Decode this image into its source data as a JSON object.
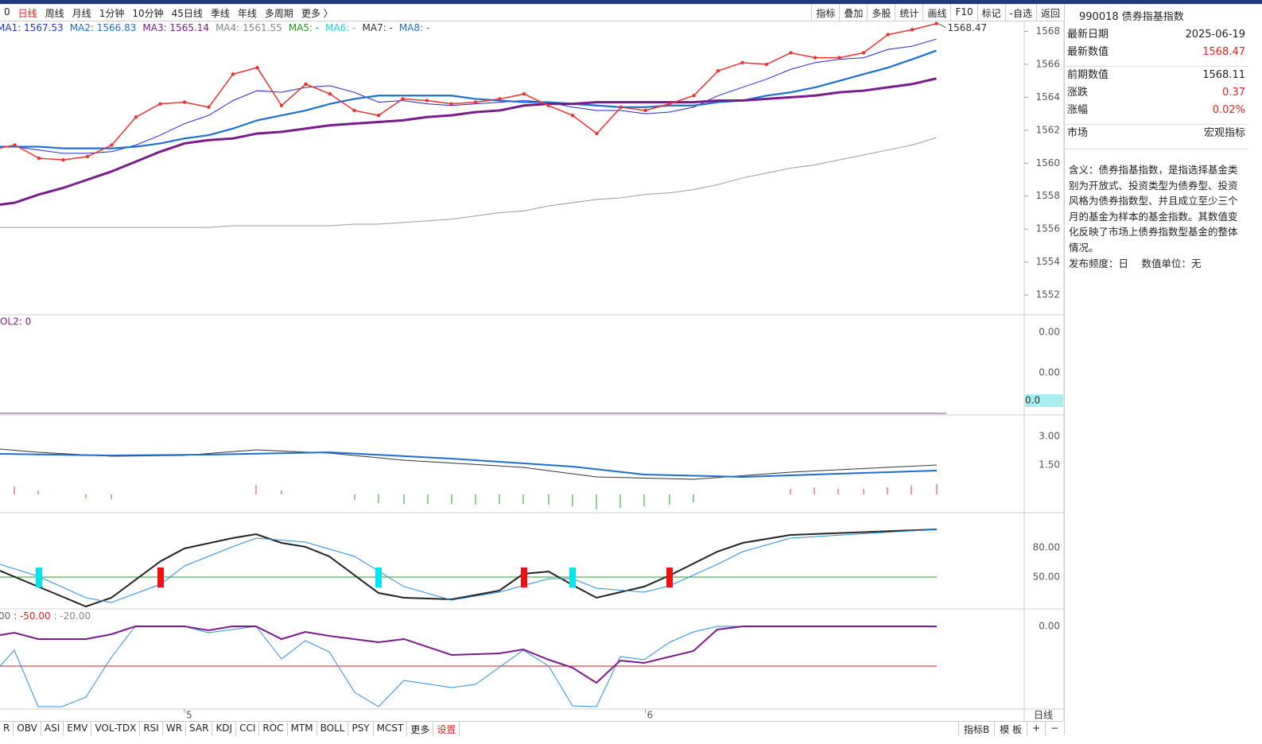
{
  "toolbar": {
    "periods": [
      "0",
      "日线",
      "周线",
      "月线",
      "1分钟",
      "10分钟",
      "45日线",
      "季线",
      "年线",
      "多周期",
      "更多 〉"
    ],
    "tools": [
      "指标",
      "叠加",
      "多股",
      "统计",
      "画线",
      "F10",
      "标记",
      "-自选",
      "返回"
    ]
  },
  "legend": [
    "MA1: 1567.53",
    "MA2: 1566.83",
    "MA3: 1565.14",
    "MA4: 1561.55",
    "MA5: -",
    "MA6: -",
    "MA7: -",
    "MA8: -"
  ],
  "chart_data": {
    "type": "line",
    "categories": [
      null,
      null,
      null,
      null,
      null,
      null,
      null,
      null,
      "5",
      null,
      null,
      null,
      null,
      null,
      null,
      null,
      null,
      null,
      null,
      null,
      null,
      null,
      null,
      null,
      null,
      null,
      null,
      "6",
      null,
      null,
      null,
      null,
      null,
      null,
      null,
      null,
      null,
      null,
      null,
      null
    ],
    "ylim": [
      1550.8,
      1568.6
    ],
    "yticks": [
      1552,
      1554,
      1556,
      1558,
      1560,
      1562,
      1564,
      1566,
      1568
    ],
    "last_label": "1568.47",
    "series": [
      {
        "name": "MA1",
        "color": "#2626d0",
        "width": 1,
        "values": [
          1561.0,
          1561.0,
          1560.8,
          1560.6,
          1560.6,
          1560.7,
          1561.1,
          1561.7,
          1562.4,
          1562.9,
          1563.8,
          1564.4,
          1564.3,
          1564.6,
          1564.7,
          1564.3,
          1563.7,
          1563.8,
          1563.6,
          1563.5,
          1563.6,
          1563.7,
          1563.8,
          1563.7,
          1563.4,
          1563.2,
          1563.2,
          1563.0,
          1563.1,
          1563.4,
          1564.1,
          1564.6,
          1565.1,
          1565.7,
          1566.1,
          1566.3,
          1566.4,
          1566.9,
          1567.1,
          1567.53
        ]
      },
      {
        "name": "MA2",
        "color": "#1a6fd0",
        "width": 2.2,
        "values": [
          1561.0,
          1561.0,
          1561.0,
          1560.9,
          1560.9,
          1560.9,
          1561.0,
          1561.2,
          1561.5,
          1561.7,
          1562.1,
          1562.6,
          1562.9,
          1563.2,
          1563.6,
          1563.9,
          1564.1,
          1564.1,
          1564.1,
          1564.1,
          1563.9,
          1563.8,
          1563.7,
          1563.7,
          1563.6,
          1563.5,
          1563.4,
          1563.4,
          1563.5,
          1563.5,
          1563.7,
          1563.8,
          1564.1,
          1564.3,
          1564.6,
          1565.0,
          1565.4,
          1565.8,
          1566.3,
          1566.83
        ]
      },
      {
        "name": "MA3",
        "color": "#7a1a8c",
        "width": 3,
        "values": [
          1557.4,
          1557.6,
          1558.1,
          1558.5,
          1559.0,
          1559.5,
          1560.1,
          1560.7,
          1561.2,
          1561.4,
          1561.5,
          1561.8,
          1561.9,
          1562.1,
          1562.3,
          1562.4,
          1562.5,
          1562.6,
          1562.8,
          1562.9,
          1563.1,
          1563.2,
          1563.5,
          1563.6,
          1563.6,
          1563.7,
          1563.7,
          1563.7,
          1563.7,
          1563.7,
          1563.8,
          1563.8,
          1563.9,
          1564.0,
          1564.1,
          1564.3,
          1564.4,
          1564.6,
          1564.8,
          1565.14
        ]
      },
      {
        "name": "MA4",
        "color": "#999999",
        "width": 1,
        "values": [
          1556.1,
          1556.1,
          1556.1,
          1556.1,
          1556.1,
          1556.1,
          1556.1,
          1556.1,
          1556.1,
          1556.1,
          1556.2,
          1556.2,
          1556.2,
          1556.2,
          1556.2,
          1556.3,
          1556.3,
          1556.4,
          1556.5,
          1556.6,
          1556.8,
          1557.0,
          1557.1,
          1557.4,
          1557.6,
          1557.8,
          1557.9,
          1558.1,
          1558.2,
          1558.4,
          1558.7,
          1559.1,
          1559.4,
          1559.7,
          1559.9,
          1560.2,
          1560.5,
          1560.8,
          1561.1,
          1561.55
        ]
      },
      {
        "name": "close",
        "color": "#f03030",
        "width": 1.5,
        "dots": true,
        "values": [
          1560.8,
          1561.1,
          1560.3,
          1560.2,
          1560.4,
          1561.1,
          1562.8,
          1563.6,
          1563.7,
          1563.4,
          1565.4,
          1565.8,
          1563.5,
          1564.8,
          1564.2,
          1563.2,
          1562.9,
          1563.9,
          1563.8,
          1563.6,
          1563.7,
          1563.9,
          1564.2,
          1563.5,
          1562.9,
          1561.8,
          1563.4,
          1563.2,
          1563.6,
          1564.1,
          1565.6,
          1566.1,
          1566.0,
          1566.7,
          1566.4,
          1566.4,
          1566.7,
          1567.8,
          1568.1,
          1568.47
        ]
      }
    ]
  },
  "panels": {
    "vol": {
      "label": "OL2: 0",
      "ticks": [
        "0.00",
        "0.00"
      ],
      "badge": "0.0"
    },
    "macd": {
      "ticks": [
        "3.00",
        "1.50"
      ]
    },
    "kdj": {
      "ticks": [
        "80.00",
        "50.00"
      ]
    },
    "wr": {
      "label": [
        "00",
        " : -50.00",
        " : -20.00"
      ],
      "ticks": [
        "0.00"
      ]
    },
    "period": "日线"
  },
  "info": {
    "title": "990018 债券指基指数",
    "rows": [
      [
        "最新日期",
        "2025-06-19"
      ],
      [
        "最新数值",
        "1568.47"
      ],
      [
        "前期数值",
        "1568.11"
      ],
      [
        "涨跌",
        "0.37"
      ],
      [
        "涨幅",
        "0.02%"
      ],
      [
        "市场",
        "宏观指标"
      ]
    ],
    "description": "含义：债券指基指数，是指选择基金类别为开放式、投资类型为债券型、投资风格为债券指数型、并且成立至少三个月的基金为样本的基金指数。其数值变化反映了市场上债券指数型基金的整体情况。",
    "footer": "发布频度：日　 数值单位：无"
  },
  "bottom_tabs": [
    "R",
    "OBV",
    "ASI",
    "EMV",
    "VOL-TDX",
    "RSI",
    "WR",
    "SAR",
    "KDJ",
    "CCI",
    "ROC",
    "MTM",
    "BOLL",
    "PSY",
    "MCST",
    "更多",
    "设置"
  ],
  "bottom_right": [
    "指标B",
    "模 板",
    "+",
    "−"
  ]
}
